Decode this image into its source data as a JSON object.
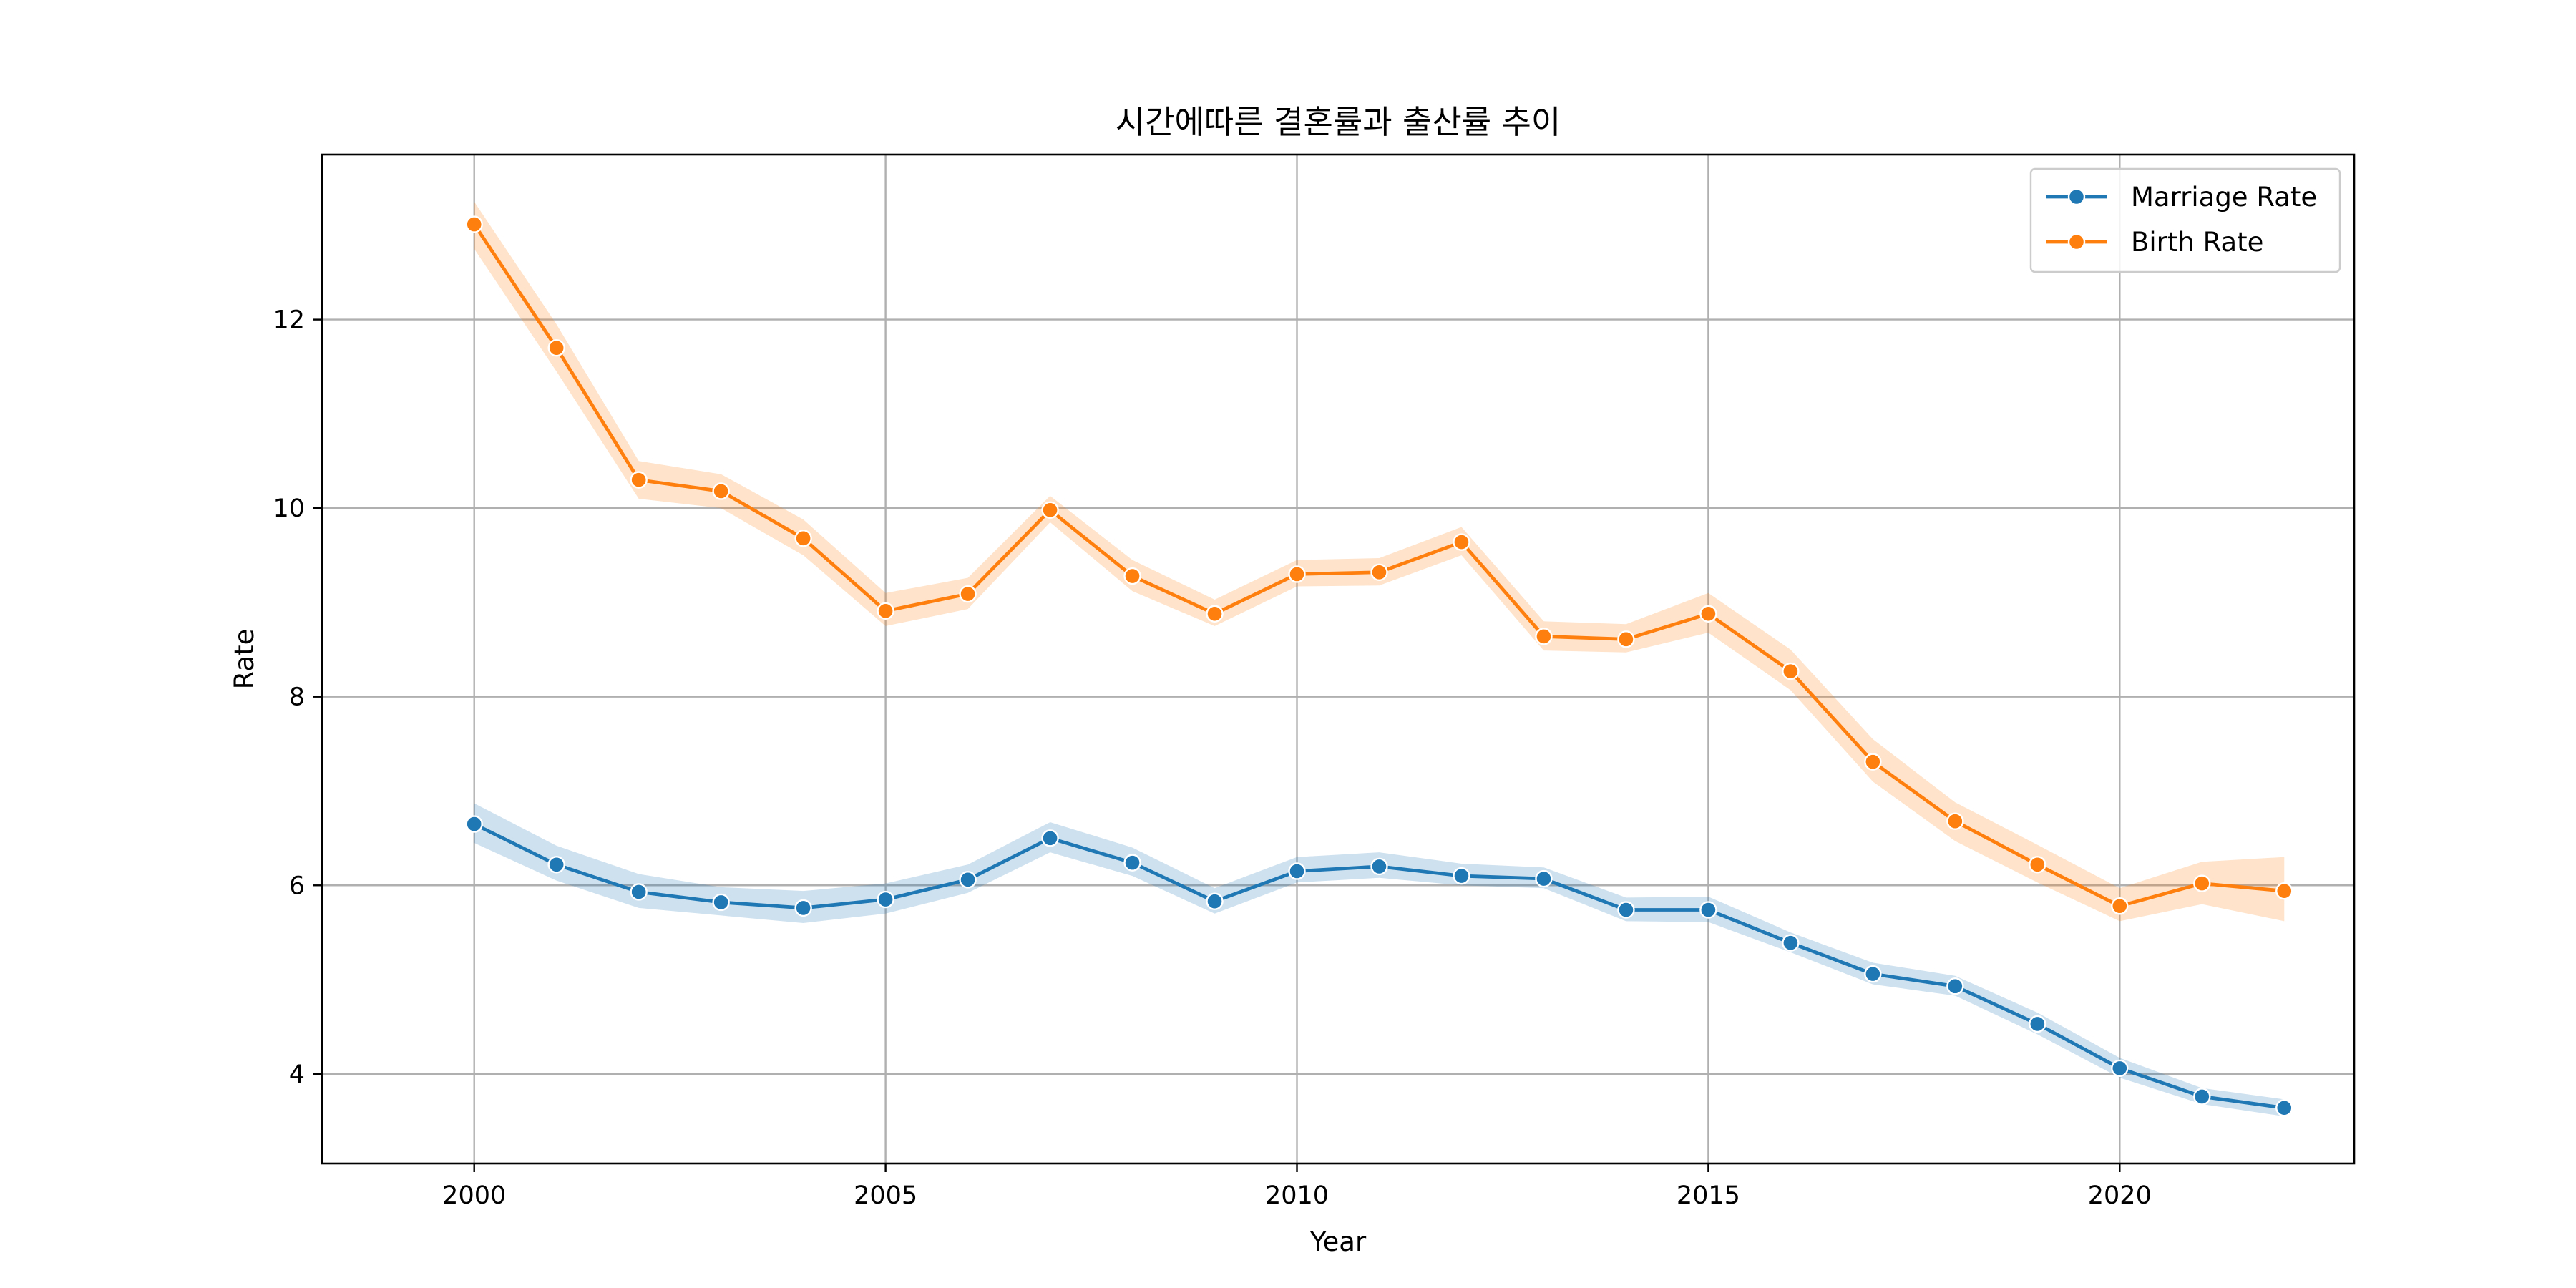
{
  "chart_data": {
    "type": "line",
    "title": "시간에따른 결혼률과 출산률 추이",
    "xlabel": "Year",
    "ylabel": "Rate",
    "xlim": [
      1998.15,
      2022.85
    ],
    "ylim": [
      3.05,
      13.75
    ],
    "x_ticks": [
      2000,
      2005,
      2010,
      2015,
      2020
    ],
    "y_ticks": [
      4,
      6,
      8,
      10,
      12
    ],
    "grid": true,
    "legend_position": "top-right",
    "x": [
      2000,
      2001,
      2002,
      2003,
      2004,
      2005,
      2006,
      2007,
      2008,
      2009,
      2010,
      2011,
      2012,
      2013,
      2014,
      2015,
      2016,
      2017,
      2018,
      2019,
      2020,
      2021,
      2022
    ],
    "series": [
      {
        "name": "Marriage Rate",
        "color": "#1f77b4",
        "values": [
          6.65,
          6.22,
          5.93,
          5.82,
          5.76,
          5.85,
          6.06,
          6.5,
          6.24,
          5.83,
          6.15,
          6.2,
          6.1,
          6.07,
          5.74,
          5.74,
          5.39,
          5.06,
          4.93,
          4.53,
          4.06,
          3.76,
          3.64
        ],
        "ci_lower": [
          6.45,
          6.05,
          5.76,
          5.68,
          5.6,
          5.7,
          5.92,
          6.35,
          6.1,
          5.7,
          6.03,
          6.08,
          6.0,
          5.97,
          5.62,
          5.61,
          5.29,
          4.95,
          4.83,
          4.42,
          3.96,
          3.68,
          3.55
        ],
        "ci_upper": [
          6.87,
          6.42,
          6.12,
          5.98,
          5.94,
          6.02,
          6.22,
          6.67,
          6.4,
          5.97,
          6.3,
          6.35,
          6.23,
          6.19,
          5.87,
          5.88,
          5.5,
          5.18,
          5.04,
          4.65,
          4.17,
          3.85,
          3.73
        ]
      },
      {
        "name": "Birth Rate",
        "color": "#ff7f0e",
        "values": [
          13.01,
          11.7,
          10.3,
          10.18,
          9.68,
          8.91,
          9.09,
          9.98,
          9.28,
          8.88,
          9.3,
          9.32,
          9.64,
          8.64,
          8.61,
          8.88,
          8.27,
          7.31,
          6.68,
          6.22,
          5.78,
          6.02,
          5.94
        ],
        "ci_lower": [
          12.75,
          11.45,
          10.1,
          10.0,
          9.5,
          8.75,
          8.93,
          9.85,
          9.12,
          8.75,
          9.17,
          9.18,
          9.5,
          8.49,
          8.47,
          8.68,
          8.07,
          7.1,
          6.47,
          6.03,
          5.62,
          5.8,
          5.62
        ],
        "ci_upper": [
          13.25,
          11.95,
          10.5,
          10.36,
          9.88,
          9.1,
          9.26,
          10.13,
          9.45,
          9.03,
          9.45,
          9.47,
          9.8,
          8.8,
          8.77,
          9.1,
          8.5,
          7.55,
          6.88,
          6.43,
          5.97,
          6.25,
          6.3
        ]
      }
    ]
  }
}
